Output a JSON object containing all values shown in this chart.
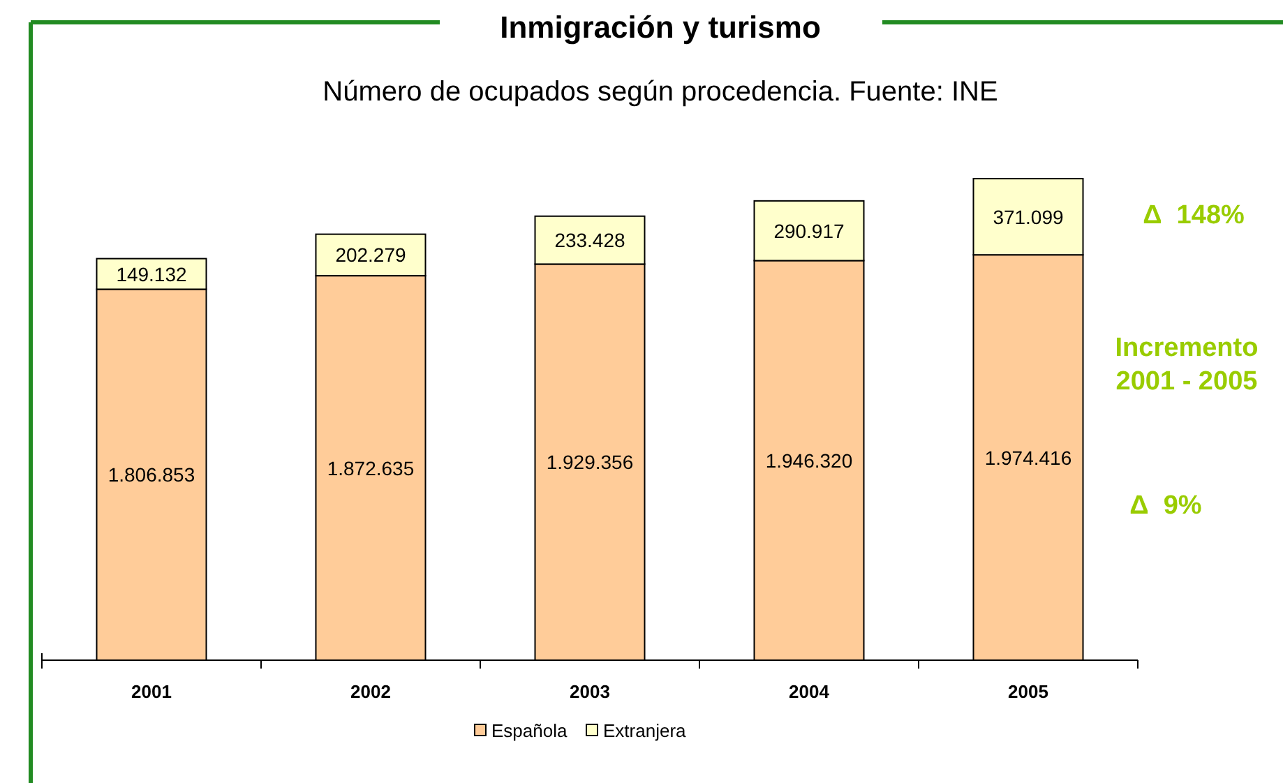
{
  "chart_data": {
    "type": "bar",
    "title": "Inmigración y turismo",
    "subtitle": "Número de ocupados según procedencia. Fuente: INE",
    "categories": [
      "2001",
      "2002",
      "2003",
      "2004",
      "2005"
    ],
    "stacked": true,
    "legend": "bottom",
    "series": [
      {
        "name": "Española",
        "color": "#ffcc99",
        "values": [
          1806853,
          1872635,
          1929356,
          1946320,
          1974416
        ],
        "value_labels": [
          "1.806.853",
          "1.872.635",
          "1.929.356",
          "1.946.320",
          "1.974.416"
        ]
      },
      {
        "name": "Extranjera",
        "color": "#ffffcc",
        "values": [
          149132,
          202279,
          233428,
          290917,
          371099
        ],
        "value_labels": [
          "149.132",
          "202.279",
          "233.428",
          "290.917",
          "371.099"
        ]
      }
    ],
    "annotations": [
      "Δ  148%",
      "Incremento 2001 - 2005",
      "Δ  9%"
    ]
  }
}
